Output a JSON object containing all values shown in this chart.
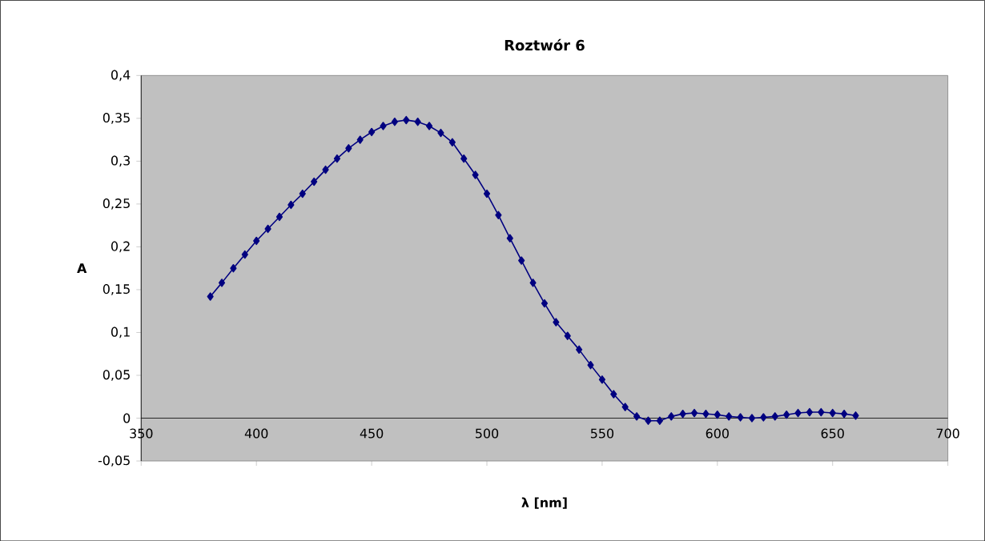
{
  "chart_data": {
    "type": "line",
    "title": "Roztwór 6",
    "xlabel": "λ [nm]",
    "ylabel": "A",
    "xlim": [
      350,
      700
    ],
    "xticks": [
      350,
      400,
      450,
      500,
      550,
      600,
      650,
      700
    ],
    "ylim": [
      -0.05,
      0.4
    ],
    "yticks": [
      {
        "value": -0.05,
        "label": "-0,05"
      },
      {
        "value": 0,
        "label": "0"
      },
      {
        "value": 0.05,
        "label": "0,05"
      },
      {
        "value": 0.1,
        "label": "0,1"
      },
      {
        "value": 0.15,
        "label": "0,15"
      },
      {
        "value": 0.2,
        "label": "0,2"
      },
      {
        "value": 0.25,
        "label": "0,25"
      },
      {
        "value": 0.3,
        "label": "0,3"
      },
      {
        "value": 0.35,
        "label": "0,35"
      },
      {
        "value": 0.4,
        "label": "0,4"
      }
    ],
    "grid": false,
    "marker": "diamond",
    "line_style": "solid",
    "series": [
      {
        "color": "#000080",
        "x": [
          380,
          385,
          390,
          395,
          400,
          405,
          410,
          415,
          420,
          425,
          430,
          435,
          440,
          445,
          450,
          455,
          460,
          465,
          470,
          475,
          480,
          485,
          490,
          495,
          500,
          505,
          510,
          515,
          520,
          525,
          530,
          535,
          540,
          545,
          550,
          555,
          560,
          565,
          570,
          575,
          580,
          585,
          590,
          595,
          600,
          605,
          610,
          615,
          620,
          625,
          630,
          635,
          640,
          645,
          650,
          655,
          660
        ],
        "values": [
          0.142,
          0.158,
          0.175,
          0.191,
          0.207,
          0.221,
          0.235,
          0.249,
          0.262,
          0.276,
          0.29,
          0.303,
          0.315,
          0.325,
          0.334,
          0.341,
          0.346,
          0.348,
          0.346,
          0.341,
          0.333,
          0.322,
          0.303,
          0.284,
          0.262,
          0.237,
          0.21,
          0.184,
          0.158,
          0.134,
          0.112,
          0.096,
          0.08,
          0.062,
          0.045,
          0.028,
          0.013,
          0.002,
          -0.003,
          -0.003,
          0.002,
          0.005,
          0.006,
          0.005,
          0.004,
          0.002,
          0.001,
          0.0,
          0.001,
          0.002,
          0.004,
          0.006,
          0.007,
          0.007,
          0.006,
          0.005,
          0.003
        ]
      }
    ]
  }
}
